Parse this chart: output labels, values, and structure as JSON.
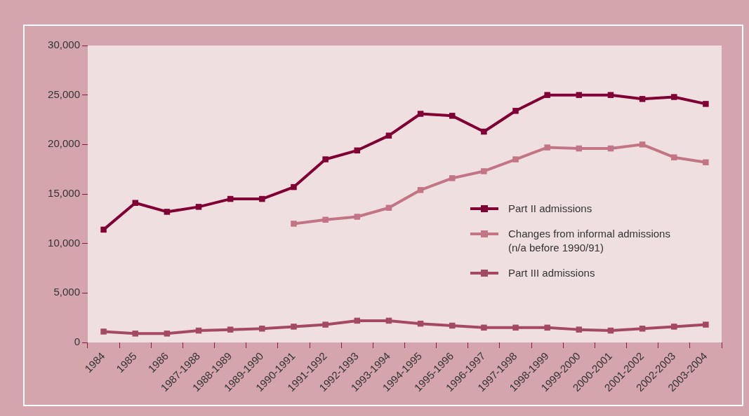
{
  "chart_data": {
    "type": "line",
    "categories": [
      "1984",
      "1985",
      "1986",
      "1987-1988",
      "1988-1989",
      "1989-1990",
      "1990-1991",
      "1991-1992",
      "1992-1993",
      "1993-1994",
      "1994-1995",
      "1995-1996",
      "1996-1997",
      "1997-1998",
      "1998-1999",
      "1999-2000",
      "2000-2001",
      "2001-2002",
      "2002-2003",
      "2003-2004"
    ],
    "series": [
      {
        "name": "Part II admissions",
        "color": "#800033",
        "values": [
          11400,
          14100,
          13200,
          13700,
          14500,
          14500,
          15700,
          18500,
          19400,
          20900,
          23100,
          22900,
          21300,
          23400,
          25000,
          25000,
          25000,
          24600,
          24800,
          24100
        ]
      },
      {
        "name": "Changes from informal admissions (n/a before 1990/91)",
        "color": "#c27585",
        "values": [
          null,
          null,
          null,
          null,
          null,
          null,
          12000,
          12400,
          12700,
          13600,
          15400,
          16600,
          17300,
          18500,
          19700,
          19600,
          19600,
          20000,
          18700,
          18200
        ]
      },
      {
        "name": "Part III admissions",
        "color": "#a34a62",
        "values": [
          1100,
          900,
          900,
          1200,
          1300,
          1400,
          1600,
          1800,
          2200,
          2200,
          1900,
          1700,
          1500,
          1500,
          1500,
          1300,
          1200,
          1400,
          1600,
          1800
        ]
      }
    ],
    "ylim": [
      0,
      30000
    ],
    "yticks": [
      0,
      {
        "value": 5000,
        "label": "5,000"
      },
      {
        "value": 10000,
        "label": "10,000"
      },
      {
        "value": 15000,
        "label": "15,000"
      },
      {
        "value": 20000,
        "label": "20,000"
      },
      {
        "value": 25000,
        "label": "25,000"
      },
      {
        "value": 30000,
        "label": "30,000"
      }
    ],
    "grid": false,
    "legend": "right",
    "marker": "square",
    "line_style": "solid"
  }
}
